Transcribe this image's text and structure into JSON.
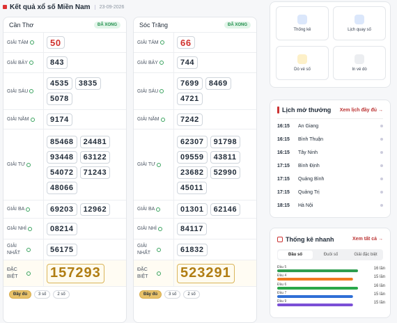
{
  "header": {
    "title": "Kết quả xổ số Miền Nam",
    "date": "23-09-2026"
  },
  "provinces": [
    {
      "name": "Cần Thơ",
      "status": "ĐÃ XONG",
      "prizes": [
        {
          "label": "GIẢI TÁM",
          "numbers": [
            "50"
          ]
        },
        {
          "label": "GIẢI BẢY",
          "numbers": [
            "843"
          ]
        },
        {
          "label": "GIẢI SÁU",
          "numbers": [
            "4535",
            "3835",
            "5078"
          ]
        },
        {
          "label": "GIẢI NĂM",
          "numbers": [
            "9174"
          ]
        },
        {
          "label": "GIẢI TƯ",
          "numbers": [
            "85468",
            "24481",
            "93448",
            "63122",
            "54072",
            "71243",
            "48066"
          ]
        },
        {
          "label": "GIẢI BA",
          "numbers": [
            "69203",
            "12962"
          ]
        },
        {
          "label": "GIẢI NHÌ",
          "numbers": [
            "08214"
          ]
        },
        {
          "label": "GIẢI NHẤT",
          "numbers": [
            "56175"
          ]
        },
        {
          "label": "ĐẶC BIỆT",
          "numbers": [
            "157293"
          ]
        }
      ]
    },
    {
      "name": "Sóc Trăng",
      "status": "ĐÃ XONG",
      "prizes": [
        {
          "label": "GIẢI TÁM",
          "numbers": [
            "66"
          ]
        },
        {
          "label": "GIẢI BẢY",
          "numbers": [
            "744"
          ]
        },
        {
          "label": "GIẢI SÁU",
          "numbers": [
            "7699",
            "8469",
            "4721"
          ]
        },
        {
          "label": "GIẢI NĂM",
          "numbers": [
            "7242"
          ]
        },
        {
          "label": "GIẢI TƯ",
          "numbers": [
            "62307",
            "91798",
            "09559",
            "43811",
            "23682",
            "52990",
            "45011"
          ]
        },
        {
          "label": "GIẢI BA",
          "numbers": [
            "01301",
            "62146"
          ]
        },
        {
          "label": "GIẢI NHÌ",
          "numbers": [
            "84117"
          ]
        },
        {
          "label": "GIẢI NHẤT",
          "numbers": [
            "61832"
          ]
        },
        {
          "label": "ĐẶC BIỆT",
          "numbers": [
            "523291"
          ]
        }
      ]
    }
  ],
  "result_filters": [
    "Đầy đủ",
    "3 số",
    "2 số"
  ],
  "tools": [
    "Thống kê",
    "Lịch quay số",
    "Dò vé số",
    "In vé dò"
  ],
  "schedule": {
    "title": "Lịch mở thưởng",
    "link": "Xem lịch đầy đủ",
    "rows": [
      {
        "time": "16:15",
        "name": "An Giang"
      },
      {
        "time": "16:15",
        "name": "Bình Thuận"
      },
      {
        "time": "16:15",
        "name": "Tây Ninh"
      },
      {
        "time": "17:15",
        "name": "Bình Định"
      },
      {
        "time": "17:15",
        "name": "Quảng Bình"
      },
      {
        "time": "17:15",
        "name": "Quảng Trị"
      },
      {
        "time": "18:15",
        "name": "Hà Nội"
      }
    ]
  },
  "quick_stats": {
    "title": "Thống kê nhanh",
    "link": "Xem tất cả",
    "tabs": [
      "Đầu số",
      "Đuôi số",
      "Giải đặc biệt"
    ],
    "rows": [
      {
        "label": "Đầu 5",
        "count": 16,
        "count_label": "16 lần",
        "color": "#2e9e4f"
      },
      {
        "label": "Đầu 4",
        "count": 15,
        "count_label": "15 lần",
        "color": "#f07a1f"
      },
      {
        "label": "Đầu 6",
        "count": 16,
        "count_label": "16 lần",
        "color": "#2aa84a"
      },
      {
        "label": "Đầu 7",
        "count": 15,
        "count_label": "15 lần",
        "color": "#2f6fd6"
      },
      {
        "label": "Đầu 9",
        "count": 15,
        "count_label": "15 lần",
        "color": "#7b4fd6"
      }
    ]
  }
}
